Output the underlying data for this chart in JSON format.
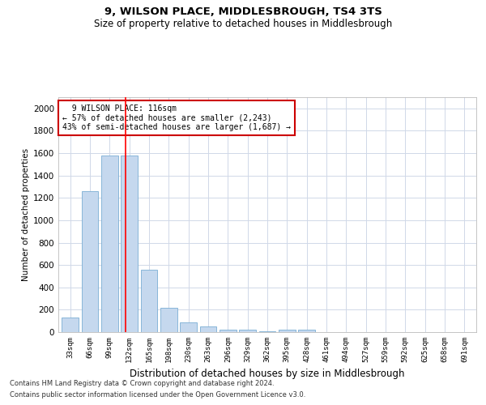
{
  "title1": "9, WILSON PLACE, MIDDLESBROUGH, TS4 3TS",
  "title2": "Size of property relative to detached houses in Middlesbrough",
  "xlabel": "Distribution of detached houses by size in Middlesbrough",
  "ylabel": "Number of detached properties",
  "categories": [
    "33sqm",
    "66sqm",
    "99sqm",
    "132sqm",
    "165sqm",
    "198sqm",
    "230sqm",
    "263sqm",
    "296sqm",
    "329sqm",
    "362sqm",
    "395sqm",
    "428sqm",
    "461sqm",
    "494sqm",
    "527sqm",
    "559sqm",
    "592sqm",
    "625sqm",
    "658sqm",
    "691sqm"
  ],
  "values": [
    130,
    1260,
    1580,
    1580,
    560,
    220,
    90,
    50,
    25,
    20,
    5,
    20,
    20,
    0,
    0,
    0,
    0,
    0,
    0,
    0,
    0
  ],
  "bar_color": "#c5d8ee",
  "bar_edge_color": "#7aadd4",
  "red_line_x": 2.82,
  "annotation_text": "  9 WILSON PLACE: 116sqm\n← 57% of detached houses are smaller (2,243)\n43% of semi-detached houses are larger (1,687) →",
  "annotation_box_color": "#ffffff",
  "annotation_box_edge": "#cc0000",
  "ylim": [
    0,
    2100
  ],
  "yticks": [
    0,
    200,
    400,
    600,
    800,
    1000,
    1200,
    1400,
    1600,
    1800,
    2000
  ],
  "grid_color": "#d0d8e8",
  "footer1": "Contains HM Land Registry data © Crown copyright and database right 2024.",
  "footer2": "Contains public sector information licensed under the Open Government Licence v3.0."
}
